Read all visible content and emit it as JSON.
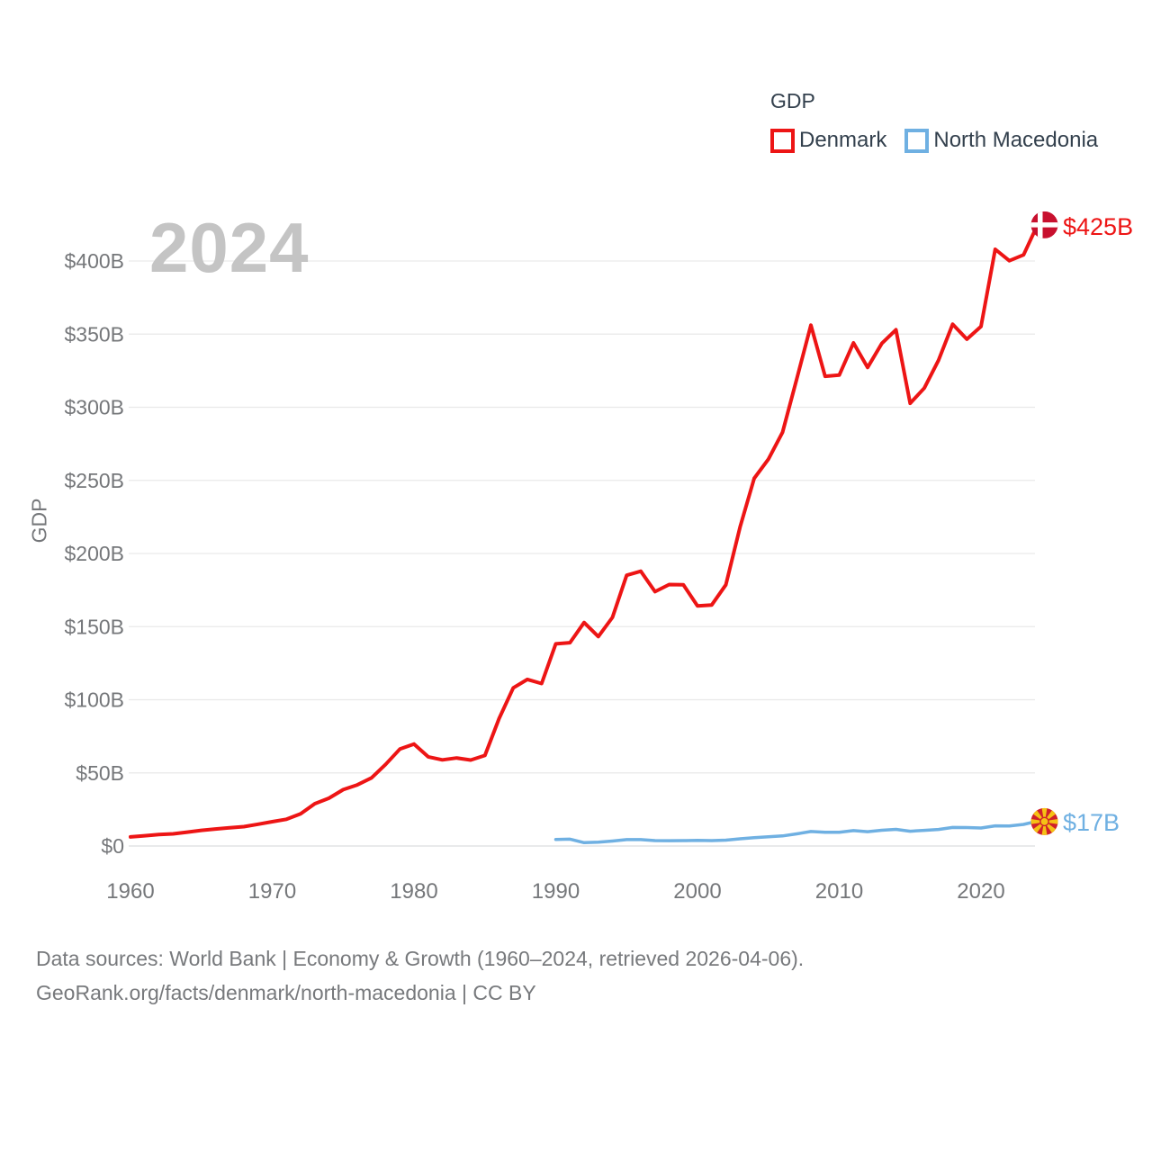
{
  "footer": {
    "line1": "Data sources: World Bank | Economy & Growth (1960–2024, retrieved 2026-04-06).",
    "line2": "GeoRank.org/facts/denmark/north-macedonia | CC BY"
  },
  "chart_data": {
    "type": "line",
    "title": "GDP",
    "ylabel": "GDP",
    "watermark": "2024",
    "grid": true,
    "legend_position": "top-right",
    "x_range": [
      1960,
      2024
    ],
    "ylim": [
      0,
      425
    ],
    "y_ticks": [
      {
        "value": 0,
        "label": "$0"
      },
      {
        "value": 50,
        "label": "$50B"
      },
      {
        "value": 100,
        "label": "$100B"
      },
      {
        "value": 150,
        "label": "$150B"
      },
      {
        "value": 200,
        "label": "$200B"
      },
      {
        "value": 250,
        "label": "$250B"
      },
      {
        "value": 300,
        "label": "$300B"
      },
      {
        "value": 350,
        "label": "$350B"
      },
      {
        "value": 400,
        "label": "$400B"
      }
    ],
    "x_ticks": [
      {
        "value": 1960,
        "label": "1960"
      },
      {
        "value": 1970,
        "label": "1970"
      },
      {
        "value": 1980,
        "label": "1980"
      },
      {
        "value": 1990,
        "label": "1990"
      },
      {
        "value": 2000,
        "label": "2000"
      },
      {
        "value": 2010,
        "label": "2010"
      },
      {
        "value": 2020,
        "label": "2020"
      }
    ],
    "series": [
      {
        "name": "Denmark",
        "color": "#ed1515",
        "end_label": "$425B",
        "icon": "denmark-flag-icon",
        "flag_colors": {
          "base": "#c8102e",
          "cross": "#ffffff"
        },
        "start_year": 1960,
        "unit": "billion USD",
        "values": [
          6.2,
          7.0,
          7.8,
          8.3,
          9.5,
          10.7,
          11.6,
          12.5,
          13.2,
          14.9,
          16.6,
          18.3,
          22.0,
          28.9,
          32.7,
          38.5,
          41.8,
          46.6,
          55.8,
          66.3,
          69.7,
          61.0,
          58.9,
          60.2,
          58.8,
          61.9,
          87.1,
          108.1,
          113.9,
          111.1,
          138.2,
          139.0,
          152.8,
          143.2,
          156.3,
          185.1,
          187.9,
          173.9,
          178.8,
          178.6,
          164.2,
          164.8,
          178.6,
          218.1,
          251.4,
          264.5,
          282.9,
          319.4,
          356.1,
          321.2,
          322.0,
          344.0,
          327.2,
          343.6,
          353.0,
          302.7,
          313.1,
          332.1,
          356.8,
          346.5,
          355.2,
          408.0,
          400.2,
          404.2,
          425.0
        ]
      },
      {
        "name": "North Macedonia",
        "color": "#6fb0e2",
        "end_label": "$17B",
        "icon": "north-macedonia-flag-icon",
        "flag_colors": {
          "base": "#d0202a",
          "sun": "#f5c115"
        },
        "start_year": 1990,
        "unit": "billion USD",
        "values": [
          4.5,
          4.7,
          2.3,
          2.6,
          3.4,
          4.4,
          4.4,
          3.7,
          3.6,
          3.7,
          3.8,
          3.7,
          4.0,
          4.9,
          5.7,
          6.3,
          6.9,
          8.3,
          9.9,
          9.4,
          9.4,
          10.5,
          9.8,
          10.8,
          11.4,
          10.1,
          10.7,
          11.3,
          12.7,
          12.6,
          12.3,
          13.8,
          13.7,
          14.8,
          17.0
        ]
      }
    ]
  }
}
